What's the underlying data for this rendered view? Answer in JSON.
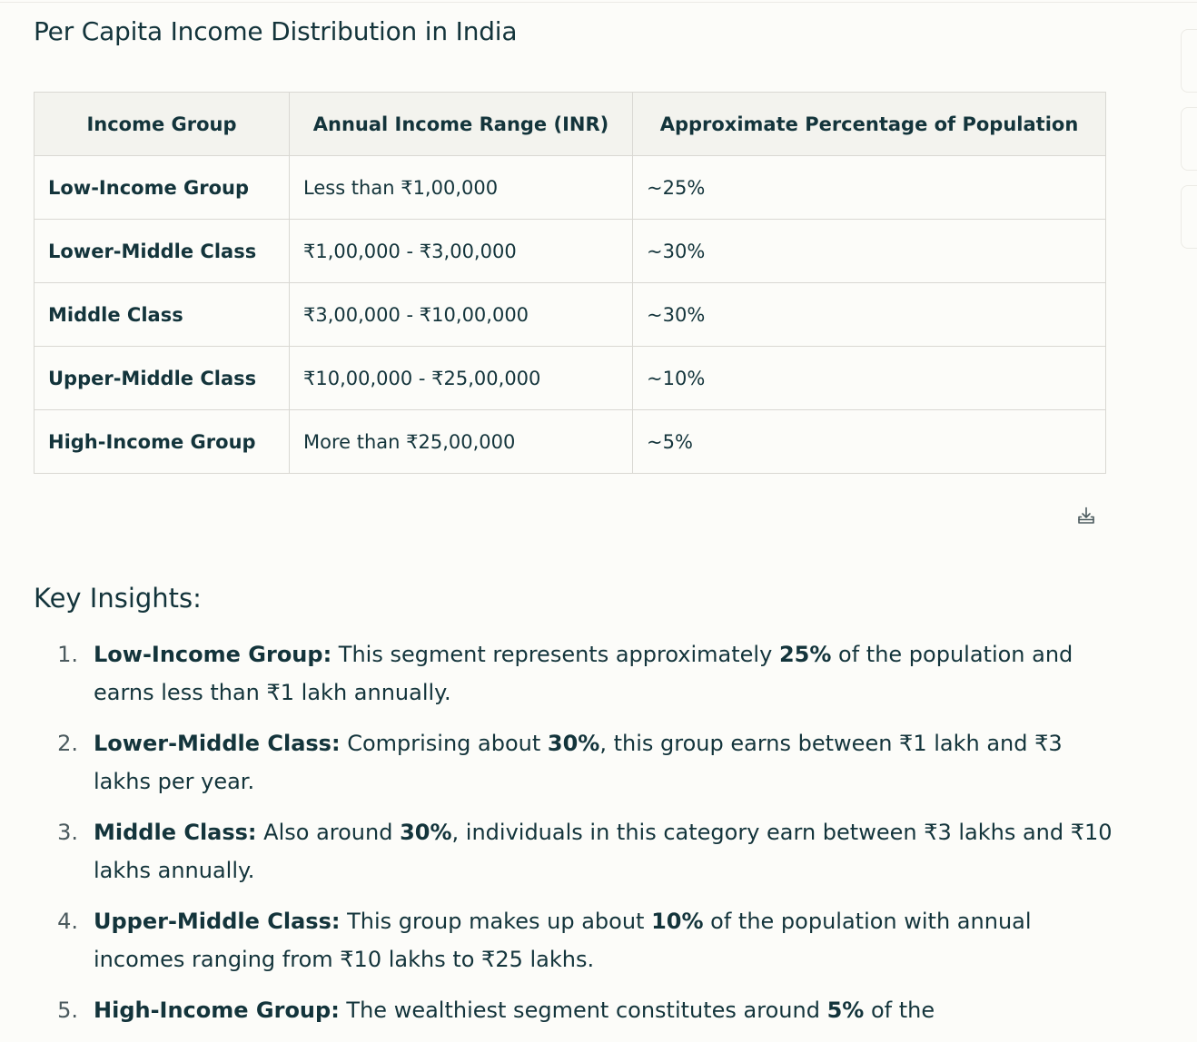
{
  "page": {
    "title": "Per Capita Income Distribution in India"
  },
  "table": {
    "headers": [
      "Income Group",
      "Annual Income Range (INR)",
      "Approximate Percentage of Population"
    ],
    "rows": [
      {
        "group": "Low-Income Group",
        "range": "Less than ₹1,00,000",
        "percent": "~25%"
      },
      {
        "group": "Lower-Middle Class",
        "range": "₹1,00,000 - ₹3,00,000",
        "percent": "~30%"
      },
      {
        "group": "Middle Class",
        "range": "₹3,00,000 - ₹10,00,000",
        "percent": "~30%"
      },
      {
        "group": "Upper-Middle Class",
        "range": "₹10,00,000 - ₹25,00,000",
        "percent": "~10%"
      },
      {
        "group": "High-Income Group",
        "range": "More than ₹25,00,000",
        "percent": "~5%"
      }
    ],
    "download_icon": "download-icon"
  },
  "insights": {
    "title": "Key Insights:",
    "items": [
      {
        "num": "1.",
        "lead": "Low-Income Group:",
        "t1": " This segment represents approximately ",
        "b1": "25%",
        "t2": " of the population and earns less than ₹1 lakh annually."
      },
      {
        "num": "2.",
        "lead": "Lower-Middle Class:",
        "t1": " Comprising about ",
        "b1": "30%",
        "t2": ", this group earns between ₹1 lakh and ₹3 lakhs per year."
      },
      {
        "num": "3.",
        "lead": "Middle Class:",
        "t1": " Also around ",
        "b1": "30%",
        "t2": ", individuals in this category earn between ₹3 lakhs and ₹10 lakhs annually."
      },
      {
        "num": "4.",
        "lead": "Upper-Middle Class:",
        "t1": " This group makes up about ",
        "b1": "10%",
        "t2": " of the population with annual incomes ranging from ₹10 lakhs to ₹25 lakhs."
      },
      {
        "num": "5.",
        "lead": "High-Income Group:",
        "t1": " The wealthiest segment constitutes around ",
        "b1": "5%",
        "t2": " of the"
      }
    ]
  }
}
